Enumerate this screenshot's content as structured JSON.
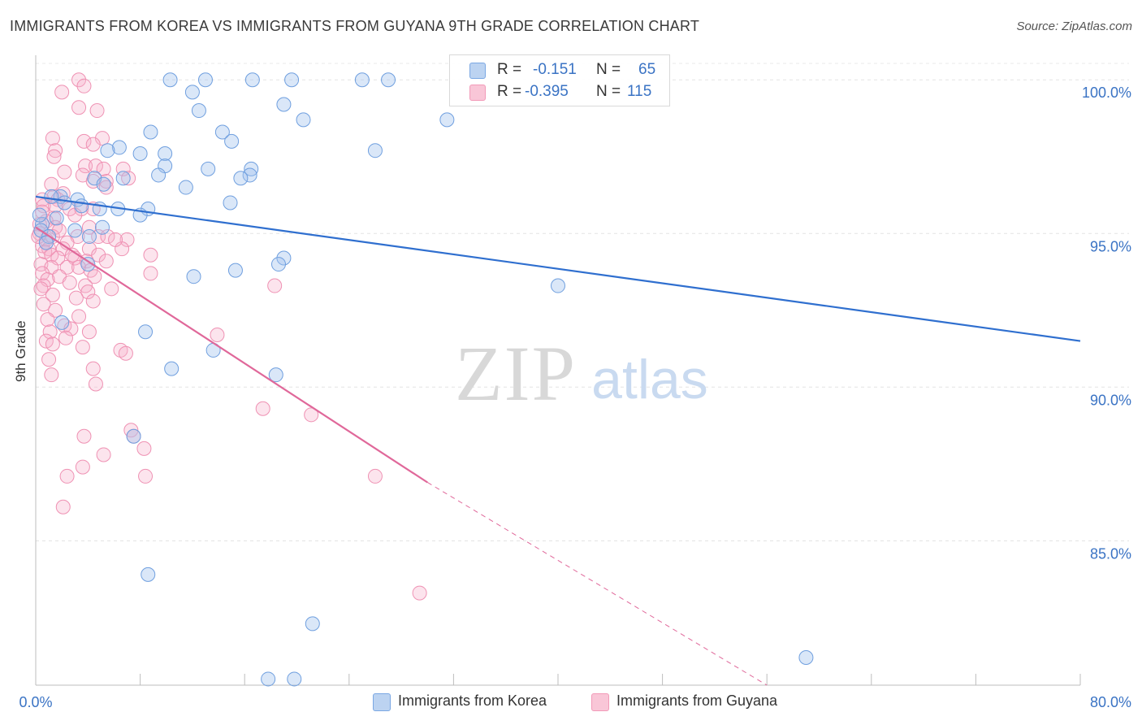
{
  "title": "IMMIGRANTS FROM KOREA VS IMMIGRANTS FROM GUYANA 9TH GRADE CORRELATION CHART",
  "source": "Source: ZipAtlas.com",
  "watermark": {
    "zip": "ZIP",
    "atlas": "atlas"
  },
  "legend": {
    "r_label": "R =",
    "n_label": "N =",
    "korea": {
      "r": "-0.151",
      "n": "65"
    },
    "guyana": {
      "r": "-0.395",
      "n": "115"
    }
  },
  "bottom_legend": {
    "korea": "Immigrants from Korea",
    "guyana": "Immigrants from Guyana"
  },
  "chart_data": {
    "type": "scatter",
    "title": "IMMIGRANTS FROM KOREA VS IMMIGRANTS FROM GUYANA 9TH GRADE CORRELATION CHART",
    "xlabel": "",
    "ylabel": "9th Grade",
    "xlim": [
      0,
      80
    ],
    "ylim": [
      80.3,
      100.8
    ],
    "x_tick_labels": [
      "0.0%",
      "80.0%"
    ],
    "y_ticks": [
      85,
      90,
      95,
      100
    ],
    "y_tick_labels": [
      "85.0%",
      "90.0%",
      "95.0%",
      "100.0%"
    ],
    "grid": true,
    "colors": {
      "korea": "#7aa7e3",
      "guyana": "#f29ab8",
      "korea_line": "#2f6fcf",
      "guyana_line": "#e0689a"
    },
    "series": [
      {
        "name": "Immigrants from Korea",
        "r": -0.151,
        "n": 65,
        "trend": {
          "x0": 0,
          "y0": 96.2,
          "x1": 80,
          "y1": 91.5
        },
        "points": [
          [
            10.3,
            100
          ],
          [
            13,
            100
          ],
          [
            16.6,
            100
          ],
          [
            19.6,
            100
          ],
          [
            25,
            100
          ],
          [
            27,
            100
          ],
          [
            12,
            99.6
          ],
          [
            19,
            99.2
          ],
          [
            12.5,
            99
          ],
          [
            20.5,
            98.7
          ],
          [
            31.5,
            98.7
          ],
          [
            8.8,
            98.3
          ],
          [
            14.3,
            98.3
          ],
          [
            15,
            98
          ],
          [
            6.4,
            97.8
          ],
          [
            5.5,
            97.7
          ],
          [
            8,
            97.6
          ],
          [
            9.9,
            97.6
          ],
          [
            26,
            97.7
          ],
          [
            9.9,
            97.2
          ],
          [
            13.2,
            97.1
          ],
          [
            16.5,
            97.1
          ],
          [
            16.4,
            96.9
          ],
          [
            9.4,
            96.9
          ],
          [
            15.7,
            96.8
          ],
          [
            4.5,
            96.8
          ],
          [
            6.7,
            96.8
          ],
          [
            5.2,
            96.6
          ],
          [
            11.5,
            96.5
          ],
          [
            1.9,
            96.2
          ],
          [
            3.2,
            96.1
          ],
          [
            3.5,
            95.9
          ],
          [
            14.9,
            96
          ],
          [
            2.2,
            96
          ],
          [
            4.9,
            95.8
          ],
          [
            6.3,
            95.8
          ],
          [
            8.6,
            95.8
          ],
          [
            8,
            95.6
          ],
          [
            0.5,
            95.3
          ],
          [
            1.6,
            95.5
          ],
          [
            5.1,
            95.2
          ],
          [
            0.4,
            95.1
          ],
          [
            3,
            95.1
          ],
          [
            1,
            94.9
          ],
          [
            4.1,
            94.9
          ],
          [
            0.8,
            94.7
          ],
          [
            19,
            94.2
          ],
          [
            18.6,
            94
          ],
          [
            4,
            94
          ],
          [
            15.3,
            93.8
          ],
          [
            12.1,
            93.6
          ],
          [
            40,
            93.3
          ],
          [
            2,
            92.1
          ],
          [
            8.4,
            91.8
          ],
          [
            13.6,
            91.2
          ],
          [
            10.4,
            90.6
          ],
          [
            18.4,
            90.4
          ],
          [
            7.5,
            88.4
          ],
          [
            8.6,
            83.9
          ],
          [
            21.2,
            82.3
          ],
          [
            59,
            81.2
          ],
          [
            17.8,
            80.5
          ],
          [
            19.8,
            80.5
          ],
          [
            1.2,
            96.2
          ],
          [
            0.3,
            95.6
          ]
        ]
      },
      {
        "name": "Immigrants from Guyana",
        "r": -0.395,
        "n": 115,
        "trend": {
          "x0": 0,
          "y0": 95.2,
          "x1": 30,
          "y1": 86.9
        },
        "trend_dashed": {
          "x0": 30,
          "y0": 86.9,
          "x1": 56,
          "y1": 80.3
        },
        "points": [
          [
            3.3,
            100
          ],
          [
            3.7,
            99.8
          ],
          [
            2,
            99.6
          ],
          [
            3.3,
            99.1
          ],
          [
            4.7,
            99
          ],
          [
            1.3,
            98.1
          ],
          [
            3.7,
            98
          ],
          [
            5.1,
            98.1
          ],
          [
            4.4,
            97.9
          ],
          [
            1.5,
            97.7
          ],
          [
            1.4,
            97.5
          ],
          [
            3.8,
            97.2
          ],
          [
            4.6,
            97.2
          ],
          [
            5.2,
            97.1
          ],
          [
            6.7,
            97.1
          ],
          [
            2.2,
            97
          ],
          [
            3.6,
            96.9
          ],
          [
            4.4,
            96.7
          ],
          [
            1.2,
            96.6
          ],
          [
            5.4,
            96.7
          ],
          [
            5.4,
            96.5
          ],
          [
            7.1,
            96.8
          ],
          [
            2.1,
            96.3
          ],
          [
            1.4,
            96.2
          ],
          [
            0.5,
            96.1
          ],
          [
            1.7,
            96.1
          ],
          [
            0.6,
            95.9
          ],
          [
            1.5,
            95.9
          ],
          [
            2.6,
            95.8
          ],
          [
            3.5,
            95.8
          ],
          [
            4.4,
            95.8
          ],
          [
            3,
            95.6
          ],
          [
            1.4,
            95.5
          ],
          [
            0.8,
            95.4
          ],
          [
            0.3,
            95.3
          ],
          [
            1.5,
            95.2
          ],
          [
            4.1,
            95.2
          ],
          [
            0.3,
            95
          ],
          [
            1.3,
            94.9
          ],
          [
            3.2,
            94.9
          ],
          [
            4.8,
            94.9
          ],
          [
            0.8,
            94.8
          ],
          [
            2.4,
            94.7
          ],
          [
            0.5,
            94.6
          ],
          [
            1,
            94.5
          ],
          [
            2.1,
            94.5
          ],
          [
            4.1,
            94.5
          ],
          [
            5.5,
            94.9
          ],
          [
            0.7,
            94.4
          ],
          [
            1.2,
            94.3
          ],
          [
            4.8,
            94.3
          ],
          [
            1.7,
            94.2
          ],
          [
            3,
            94.2
          ],
          [
            3.9,
            94.1
          ],
          [
            5.4,
            94.1
          ],
          [
            0.4,
            94
          ],
          [
            1.2,
            93.9
          ],
          [
            2.4,
            93.9
          ],
          [
            3.3,
            93.9
          ],
          [
            4.2,
            93.8
          ],
          [
            0.5,
            93.7
          ],
          [
            1.8,
            93.6
          ],
          [
            4.5,
            93.6
          ],
          [
            0.9,
            93.5
          ],
          [
            2.6,
            93.4
          ],
          [
            3.8,
            93.3
          ],
          [
            0.6,
            93.3
          ],
          [
            4,
            93.1
          ],
          [
            1.3,
            93
          ],
          [
            4.4,
            92.8
          ],
          [
            3.1,
            92.9
          ],
          [
            0.6,
            92.7
          ],
          [
            1.5,
            92.5
          ],
          [
            3.3,
            92.3
          ],
          [
            0.9,
            92.2
          ],
          [
            2.2,
            92
          ],
          [
            2.7,
            91.9
          ],
          [
            1.1,
            91.8
          ],
          [
            4.1,
            91.8
          ],
          [
            2.3,
            91.6
          ],
          [
            0.8,
            91.5
          ],
          [
            1.3,
            91.4
          ],
          [
            3.6,
            91.3
          ],
          [
            6.5,
            91.2
          ],
          [
            1,
            90.9
          ],
          [
            4.4,
            90.6
          ],
          [
            1.2,
            90.4
          ],
          [
            4.6,
            90.1
          ],
          [
            7.3,
            88.6
          ],
          [
            7.5,
            88.4
          ],
          [
            8.3,
            88
          ],
          [
            3.7,
            88.4
          ],
          [
            5.2,
            87.8
          ],
          [
            3.6,
            87.4
          ],
          [
            8.4,
            87.1
          ],
          [
            2.4,
            87.1
          ],
          [
            7,
            94.8
          ],
          [
            6.6,
            94.5
          ],
          [
            8.8,
            94.3
          ],
          [
            13.9,
            91.7
          ],
          [
            17.4,
            89.3
          ],
          [
            26,
            87.1
          ],
          [
            18.3,
            93.3
          ],
          [
            21.1,
            89.1
          ],
          [
            2.1,
            86.1
          ],
          [
            29.4,
            83.3
          ],
          [
            6.9,
            91.1
          ],
          [
            8.8,
            93.7
          ],
          [
            6.1,
            94.8
          ],
          [
            5.8,
            93.2
          ],
          [
            0.5,
            95.7
          ],
          [
            0.2,
            94.9
          ],
          [
            0.4,
            93.2
          ],
          [
            1.8,
            95.1
          ],
          [
            2.8,
            94.3
          ]
        ]
      }
    ]
  }
}
